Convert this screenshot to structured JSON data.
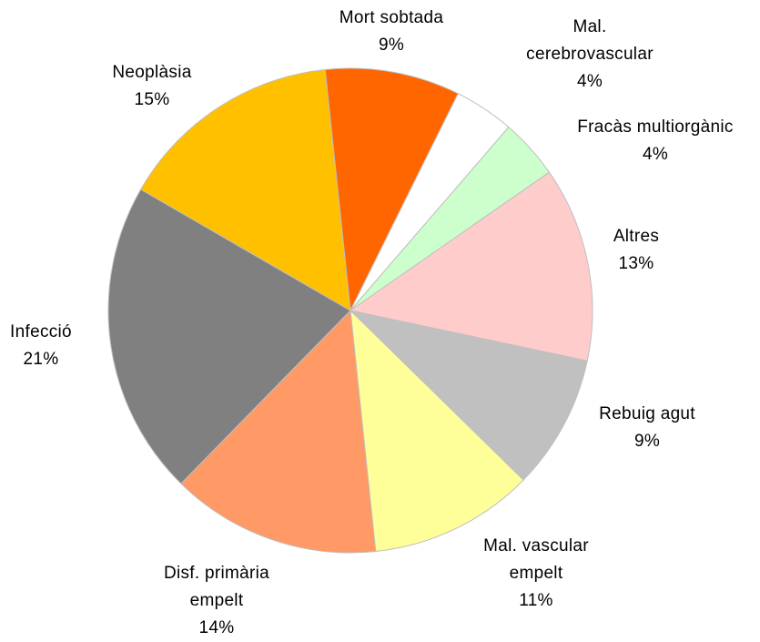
{
  "chart_data": {
    "type": "pie",
    "categories": [
      "Mort sobtada",
      "Mal. cerebrovascular",
      "Fracàs multiorgànic",
      "Altres",
      "Rebuig agut",
      "Mal. vascular empelt",
      "Disf. primària empelt",
      "Infecció",
      "Neoplàsia"
    ],
    "values": [
      9,
      4,
      4,
      13,
      9,
      11,
      14,
      21,
      15
    ],
    "value_labels": [
      "9%",
      "4%",
      "4%",
      "13%",
      "9%",
      "11%",
      "14%",
      "21%",
      "15%"
    ],
    "colors": [
      "#ff6600",
      "#ffffff",
      "#ccffcc",
      "#ffcccc",
      "#c0c0c0",
      "#ffff99",
      "#ff9966",
      "#808080",
      "#ffc000"
    ]
  }
}
